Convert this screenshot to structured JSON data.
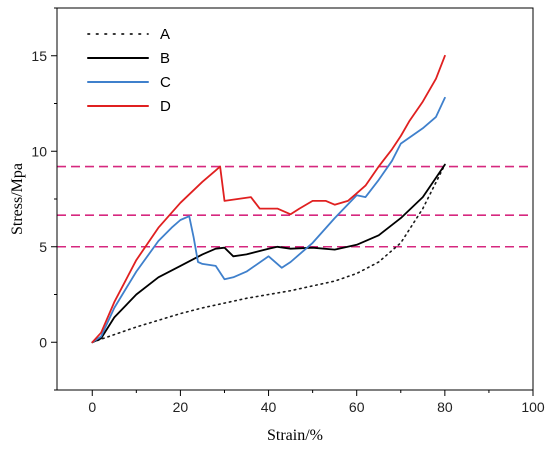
{
  "chart_data": {
    "type": "line",
    "title": "",
    "xlabel": "Strain/%",
    "ylabel": "Stress/Mpa",
    "xlim": [
      -8,
      100
    ],
    "ylim": [
      -2.5,
      17.5
    ],
    "xticks": [
      0,
      20,
      40,
      60,
      80,
      100
    ],
    "yticks": [
      0,
      5,
      10,
      15
    ],
    "grid": false,
    "legend_position": "top-left",
    "series": [
      {
        "name": "A",
        "color": "#1a1a1a",
        "style": "dotted",
        "x": [
          0,
          5,
          10,
          15,
          20,
          25,
          30,
          35,
          40,
          45,
          50,
          55,
          60,
          65,
          70,
          75,
          80
        ],
        "y": [
          0,
          0.4,
          0.8,
          1.15,
          1.5,
          1.8,
          2.05,
          2.3,
          2.5,
          2.7,
          2.95,
          3.2,
          3.6,
          4.2,
          5.2,
          7.0,
          9.3
        ]
      },
      {
        "name": "B",
        "color": "#000000",
        "style": "solid",
        "x": [
          0,
          2,
          5,
          10,
          15,
          20,
          25,
          28,
          30,
          32,
          35,
          40,
          42,
          45,
          50,
          55,
          60,
          65,
          70,
          75,
          80
        ],
        "y": [
          0,
          0.2,
          1.3,
          2.5,
          3.4,
          4.0,
          4.6,
          4.9,
          4.95,
          4.5,
          4.6,
          4.9,
          5.0,
          4.9,
          4.95,
          4.85,
          5.1,
          5.6,
          6.5,
          7.6,
          9.3
        ]
      },
      {
        "name": "C",
        "color": "#3f80cc",
        "style": "solid",
        "x": [
          0,
          2,
          5,
          10,
          15,
          18,
          20,
          22,
          23,
          24,
          25,
          28,
          30,
          32,
          35,
          40,
          43,
          45,
          50,
          55,
          60,
          62,
          65,
          68,
          70,
          75,
          78,
          80
        ],
        "y": [
          0,
          0.3,
          1.8,
          3.7,
          5.3,
          6.0,
          6.4,
          6.6,
          5.5,
          4.2,
          4.1,
          4.0,
          3.3,
          3.4,
          3.7,
          4.5,
          3.9,
          4.2,
          5.2,
          6.5,
          7.7,
          7.6,
          8.5,
          9.5,
          10.4,
          11.2,
          11.8,
          12.8
        ]
      },
      {
        "name": "D",
        "color": "#e02020",
        "style": "solid",
        "x": [
          0,
          2,
          5,
          10,
          15,
          20,
          25,
          28,
          29,
          30,
          33,
          36,
          38,
          40,
          42,
          45,
          47,
          50,
          53,
          55,
          58,
          60,
          62,
          65,
          68,
          70,
          72,
          75,
          78,
          80
        ],
        "y": [
          0,
          0.5,
          2.1,
          4.3,
          6.0,
          7.3,
          8.4,
          9.0,
          9.2,
          7.4,
          7.5,
          7.6,
          7.0,
          7.0,
          7.0,
          6.7,
          7.0,
          7.4,
          7.4,
          7.2,
          7.4,
          7.8,
          8.2,
          9.2,
          10.1,
          10.8,
          11.6,
          12.6,
          13.8,
          15.0
        ]
      }
    ],
    "reference_lines": {
      "color": "#d6287f",
      "style": "dashed",
      "y": [
        9.2,
        6.65,
        5.0
      ]
    }
  }
}
